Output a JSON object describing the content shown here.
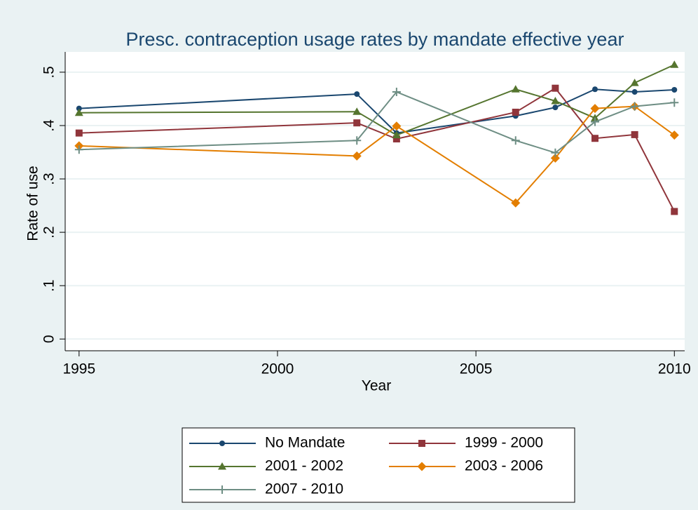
{
  "chart_data": {
    "type": "line",
    "title": "Presc. contraception usage rates by mandate effective year",
    "x_label": "Year",
    "y_label": "Rate of use",
    "x": [
      1995,
      2002,
      2003,
      2006,
      2007,
      2008,
      2009,
      2010
    ],
    "series": [
      {
        "name": "No Mandate",
        "color": "#1a476f",
        "marker": "circle",
        "values": [
          0.432,
          0.459,
          0.386,
          0.418,
          0.434,
          0.468,
          0.463,
          0.467
        ]
      },
      {
        "name": "1999 - 2000",
        "color": "#90353b",
        "marker": "square",
        "values": [
          0.386,
          0.405,
          0.375,
          0.425,
          0.47,
          0.376,
          0.383,
          0.239
        ]
      },
      {
        "name": "2001 - 2002",
        "color": "#55752f",
        "marker": "triangle",
        "values": [
          0.424,
          0.426,
          0.382,
          0.468,
          0.446,
          0.414,
          0.48,
          0.514
        ]
      },
      {
        "name": "2003 - 2006",
        "color": "#e37e00",
        "marker": "diamond",
        "values": [
          0.362,
          0.343,
          0.399,
          0.255,
          0.339,
          0.432,
          0.436,
          0.382
        ]
      },
      {
        "name": "2007 - 2010",
        "color": "#6e8e84",
        "marker": "plus",
        "values": [
          0.355,
          0.372,
          0.463,
          0.372,
          0.349,
          0.407,
          0.436,
          0.443
        ]
      }
    ],
    "xlim": [
      1994.65,
      2010.26
    ],
    "xticks": [
      1995,
      2000,
      2005,
      2010
    ],
    "ylim": [
      -0.022,
      0.538
    ],
    "yticks": [
      0,
      {
        "value": 0.1,
        "label": ".1"
      },
      {
        "value": 0.2,
        "label": ".2"
      },
      {
        "value": 0.3,
        "label": ".3"
      },
      {
        "value": 0.4,
        "label": ".4"
      },
      {
        "value": 0.5,
        "label": ".5"
      }
    ],
    "grid": true
  }
}
